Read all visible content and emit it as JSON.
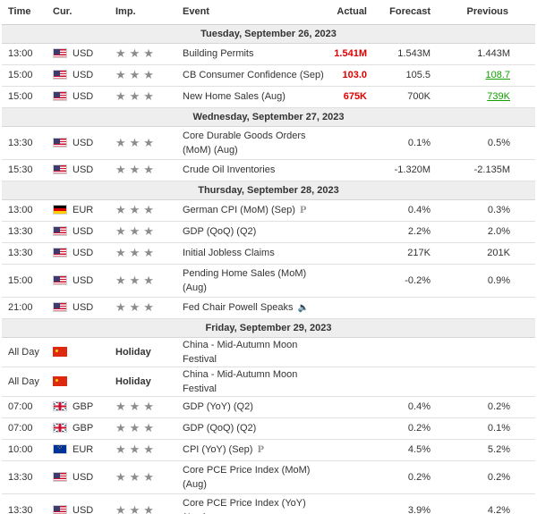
{
  "headers": {
    "time": "Time",
    "currency": "Cur.",
    "importance": "Imp.",
    "event": "Event",
    "actual": "Actual",
    "forecast": "Forecast",
    "previous": "Previous"
  },
  "days": [
    {
      "date": "Tuesday, September 26, 2023",
      "events": [
        {
          "time": "13:00",
          "flag": "us",
          "currency": "USD",
          "importance": "★★★",
          "event": "Building Permits",
          "actual": "1.541M",
          "actual_color": "red",
          "forecast": "1.543M",
          "previous": "1.443M",
          "previous_color": ""
        },
        {
          "time": "15:00",
          "flag": "us",
          "currency": "USD",
          "importance": "★★★",
          "event": "CB Consumer Confidence (Sep)",
          "actual": "103.0",
          "actual_color": "red",
          "forecast": "105.5",
          "previous": "108.7",
          "previous_color": "green"
        },
        {
          "time": "15:00",
          "flag": "us",
          "currency": "USD",
          "importance": "★★★",
          "event": "New Home Sales (Aug)",
          "actual": "675K",
          "actual_color": "red",
          "forecast": "700K",
          "previous": "739K",
          "previous_color": "green"
        }
      ]
    },
    {
      "date": "Wednesday, September 27, 2023",
      "events": [
        {
          "time": "13:30",
          "flag": "us",
          "currency": "USD",
          "importance": "★★★",
          "event": "Core Durable Goods Orders (MoM) (Aug)",
          "actual": "",
          "forecast": "0.1%",
          "previous": "0.5%",
          "tall": true
        },
        {
          "time": "15:30",
          "flag": "us",
          "currency": "USD",
          "importance": "★★★",
          "event": "Crude Oil Inventories",
          "actual": "",
          "forecast": "-1.320M",
          "previous": "-2.135M"
        }
      ]
    },
    {
      "date": "Thursday, September 28, 2023",
      "events": [
        {
          "time": "13:00",
          "flag": "de",
          "currency": "EUR",
          "importance": "★★★",
          "event": "German CPI (MoM) (Sep)",
          "marker": "P",
          "actual": "",
          "forecast": "0.4%",
          "previous": "0.3%"
        },
        {
          "time": "13:30",
          "flag": "us",
          "currency": "USD",
          "importance": "★★★",
          "event": "GDP (QoQ) (Q2)",
          "actual": "",
          "forecast": "2.2%",
          "previous": "2.0%"
        },
        {
          "time": "13:30",
          "flag": "us",
          "currency": "USD",
          "importance": "★★★",
          "event": "Initial Jobless Claims",
          "actual": "",
          "forecast": "217K",
          "previous": "201K"
        },
        {
          "time": "15:00",
          "flag": "us",
          "currency": "USD",
          "importance": "★★★",
          "event": "Pending Home Sales (MoM) (Aug)",
          "actual": "",
          "forecast": "-0.2%",
          "previous": "0.9%",
          "tall": true
        },
        {
          "time": "21:00",
          "flag": "us",
          "currency": "USD",
          "importance": "★★★",
          "event": "Fed Chair Powell Speaks",
          "speaker": "🔈",
          "actual": "",
          "forecast": "",
          "previous": ""
        }
      ]
    },
    {
      "date": "Friday, September 29, 2023",
      "events": [
        {
          "time": "All Day",
          "flag": "cn",
          "currency": "",
          "holiday": "Holiday",
          "event": "China - Mid-Autumn Moon Festival",
          "actual": "",
          "forecast": "",
          "previous": ""
        },
        {
          "time": "All Day",
          "flag": "cn",
          "currency": "",
          "holiday": "Holiday",
          "event": "China - Mid-Autumn Moon Festival",
          "actual": "",
          "forecast": "",
          "previous": ""
        },
        {
          "time": "07:00",
          "flag": "gb",
          "currency": "GBP",
          "importance": "★★★",
          "event": "GDP (YoY) (Q2)",
          "actual": "",
          "forecast": "0.4%",
          "previous": "0.2%"
        },
        {
          "time": "07:00",
          "flag": "gb",
          "currency": "GBP",
          "importance": "★★★",
          "event": "GDP (QoQ) (Q2)",
          "actual": "",
          "forecast": "0.2%",
          "previous": "0.1%"
        },
        {
          "time": "10:00",
          "flag": "eu",
          "currency": "EUR",
          "importance": "★★★",
          "event": "CPI (YoY) (Sep)",
          "marker": "P",
          "actual": "",
          "forecast": "4.5%",
          "previous": "5.2%"
        },
        {
          "time": "13:30",
          "flag": "us",
          "currency": "USD",
          "importance": "★★★",
          "event": "Core PCE Price Index (MoM) (Aug)",
          "actual": "",
          "forecast": "0.2%",
          "previous": "0.2%",
          "tall": true
        },
        {
          "time": "13:30",
          "flag": "us",
          "currency": "USD",
          "importance": "★★★",
          "event": "Core PCE Price Index (YoY) (Aug)",
          "actual": "",
          "forecast": "3.9%",
          "previous": "4.2%",
          "tall": true
        }
      ]
    }
  ],
  "colors": {
    "actual_worse": "#e00000",
    "previous_better": "#11a000",
    "day_header_bg": "#eeeeee"
  }
}
